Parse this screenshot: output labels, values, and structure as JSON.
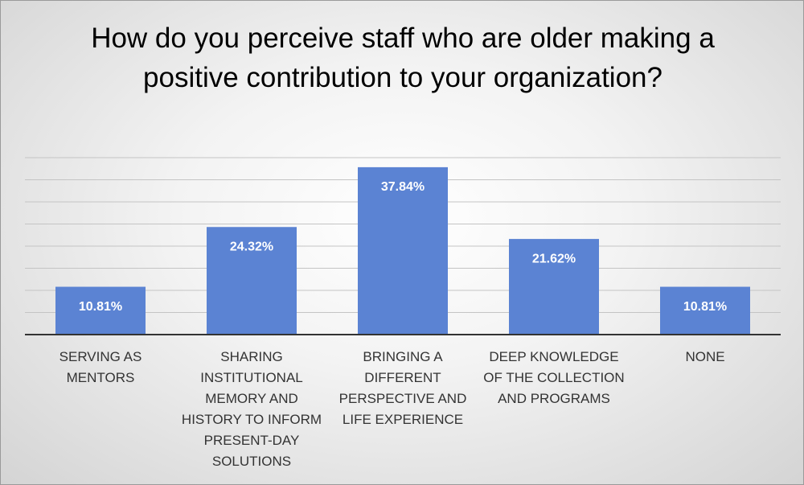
{
  "chart_data": {
    "type": "bar",
    "title": "How do you perceive staff who are older making a positive contribution to your organization?",
    "categories": [
      "SERVING AS MENTORS",
      "SHARING INSTITUTIONAL MEMORY AND HISTORY TO INFORM PRESENT-DAY SOLUTIONS",
      "BRINGING A DIFFERENT PERSPECTIVE AND LIFE EXPERIENCE",
      "DEEP KNOWLEDGE OF THE COLLECTION AND PROGRAMS",
      "NONE"
    ],
    "values": [
      10.81,
      24.32,
      37.84,
      21.62,
      10.81
    ],
    "value_labels": [
      "10.81%",
      "24.32%",
      "37.84%",
      "21.62%",
      "10.81%"
    ],
    "color": "#5b83d3",
    "ylim": [
      0,
      40
    ],
    "yticks": [
      0,
      5,
      10,
      15,
      20,
      25,
      30,
      35,
      40
    ],
    "grid": true
  }
}
